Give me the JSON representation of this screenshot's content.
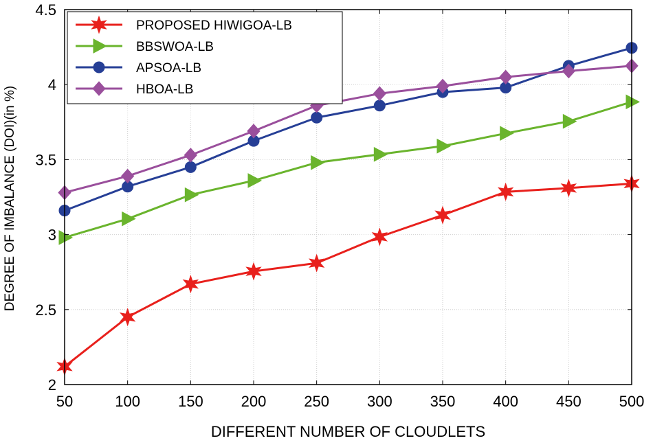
{
  "chart_data": {
    "type": "line",
    "title": "",
    "xlabel": "DIFFERENT NUMBER OF CLOUDLETS",
    "ylabel": "DEGREE OF IMBALANCE (DOI)(in %)",
    "x": [
      50,
      100,
      150,
      200,
      250,
      300,
      350,
      400,
      450,
      500
    ],
    "x_tick_labels": [
      "50",
      "100",
      "150",
      "200",
      "250",
      "300",
      "350",
      "400",
      "450",
      "500"
    ],
    "xlim": [
      50,
      500
    ],
    "ylim": [
      2,
      4.5
    ],
    "y_ticks": [
      2,
      2.5,
      3,
      3.5,
      4,
      4.5
    ],
    "y_tick_labels": [
      "2",
      "2.5",
      "3",
      "3.5",
      "4",
      "4.5"
    ],
    "grid": true,
    "legend_position": "top-left",
    "series": [
      {
        "name": "PROPOSED HIWIGOA-LB",
        "color": "#e8201c",
        "marker": "hexagram",
        "values": [
          2.12,
          2.45,
          2.67,
          2.755,
          2.81,
          2.985,
          3.13,
          3.285,
          3.31,
          3.34
        ]
      },
      {
        "name": "BBSWOA-LB",
        "color": "#6ab42d",
        "marker": "triangle-right",
        "values": [
          2.98,
          3.105,
          3.265,
          3.36,
          3.48,
          3.535,
          3.59,
          3.675,
          3.755,
          3.885
        ]
      },
      {
        "name": "APSOA-LB",
        "color": "#263f96",
        "marker": "circle",
        "values": [
          3.16,
          3.32,
          3.45,
          3.625,
          3.78,
          3.86,
          3.95,
          3.98,
          4.125,
          4.245
        ]
      },
      {
        "name": "HBOA-LB",
        "color": "#9a4f9c",
        "marker": "diamond",
        "values": [
          3.28,
          3.39,
          3.53,
          3.69,
          3.86,
          3.94,
          3.99,
          4.05,
          4.09,
          4.125
        ]
      }
    ]
  }
}
